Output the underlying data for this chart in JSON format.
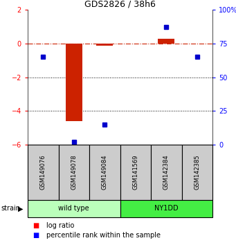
{
  "title": "GDS2826 / 38h6",
  "samples": [
    "GSM149076",
    "GSM149078",
    "GSM149084",
    "GSM141569",
    "GSM142384",
    "GSM142385"
  ],
  "log_ratios": [
    0.0,
    -4.6,
    -0.12,
    0.0,
    0.28,
    0.0
  ],
  "percentile_ranks": [
    65,
    2,
    15,
    null,
    87,
    65
  ],
  "wild_type_indices": [
    0,
    1,
    2
  ],
  "ny1dd_indices": [
    3,
    4,
    5
  ],
  "wild_type_color": "#bbffbb",
  "ny1dd_color": "#44ee44",
  "bar_color": "#cc2200",
  "dot_color": "#0000cc",
  "ylim_left": [
    -6,
    2
  ],
  "ylim_right": [
    0,
    100
  ],
  "dotted_lines": [
    -2,
    -4
  ],
  "bar_width": 0.55,
  "sample_box_color": "#cccccc",
  "title_fontsize": 9,
  "tick_fontsize": 7,
  "label_fontsize": 6,
  "strain_label_fontsize": 7,
  "group_label_fontsize": 7,
  "legend_fontsize": 7
}
